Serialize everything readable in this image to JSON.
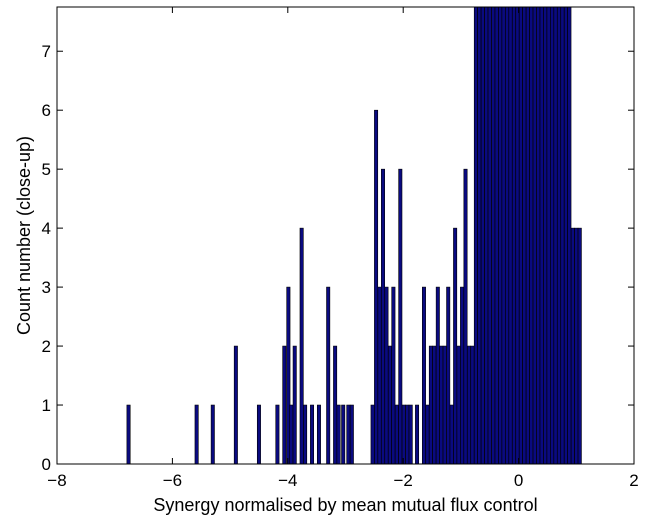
{
  "chart_data": {
    "type": "bar",
    "title": "",
    "xlabel": "Synergy normalised by mean mutual flux control",
    "ylabel": "Count number (close-up)",
    "xlim": [
      -8,
      2
    ],
    "ylim": [
      0,
      7.75
    ],
    "xticks": [
      -8,
      -6,
      -4,
      -2,
      0,
      2
    ],
    "yticks": [
      0,
      1,
      2,
      3,
      4,
      5,
      6,
      7
    ],
    "xtick_labels": [
      "−8",
      "−6",
      "−4",
      "−2",
      "0",
      "2"
    ],
    "ytick_labels": [
      "0",
      "1",
      "2",
      "3",
      "4",
      "5",
      "6",
      "7"
    ],
    "bin_width": 0.058,
    "bar_color": "#0a0a80",
    "edge_color": "#000000",
    "grid": false,
    "x": [
      -6.76,
      -5.58,
      -5.3,
      -4.9,
      -4.5,
      -4.18,
      -4.06,
      -3.99,
      -3.94,
      -3.88,
      -3.76,
      -3.7,
      -3.58,
      -3.46,
      -3.3,
      -3.18,
      -3.12,
      -3.04,
      -2.95,
      -2.89,
      -2.53,
      -2.47,
      -2.41,
      -2.35,
      -2.29,
      -2.23,
      -2.17,
      -2.11,
      -2.05,
      -1.99,
      -1.93,
      -1.87,
      -1.76,
      -1.64,
      -1.58,
      -1.52,
      -1.46,
      -1.4,
      -1.34,
      -1.28,
      -1.22,
      -1.16,
      -1.1,
      -1.04,
      -0.98,
      -0.92,
      -0.86,
      -0.8,
      -0.74,
      -0.68,
      -0.62,
      -0.56,
      -0.5,
      -0.44,
      -0.38,
      -0.32,
      -0.26,
      -0.2,
      -0.14,
      -0.08,
      -0.02,
      0.04,
      0.1,
      0.16,
      0.22,
      0.28,
      0.34,
      0.4,
      0.46,
      0.52,
      0.58,
      0.64,
      0.7,
      0.76,
      0.82,
      0.88,
      0.94,
      1.0,
      1.06
    ],
    "values": [
      1,
      1,
      1,
      2,
      1,
      1,
      2,
      3,
      1,
      2,
      4,
      1,
      1,
      1,
      3,
      2,
      1,
      1,
      1,
      1,
      1,
      6,
      3,
      5,
      3,
      2,
      3,
      1,
      5,
      1,
      1,
      1,
      1,
      3,
      1,
      2,
      2,
      3,
      2,
      2,
      3,
      1,
      4,
      2,
      3,
      5,
      2,
      2,
      20,
      20,
      20,
      20,
      20,
      20,
      20,
      20,
      20,
      20,
      20,
      20,
      20,
      20,
      20,
      20,
      20,
      20,
      20,
      20,
      20,
      20,
      20,
      20,
      20,
      20,
      20,
      20,
      4,
      4,
      4
    ]
  }
}
